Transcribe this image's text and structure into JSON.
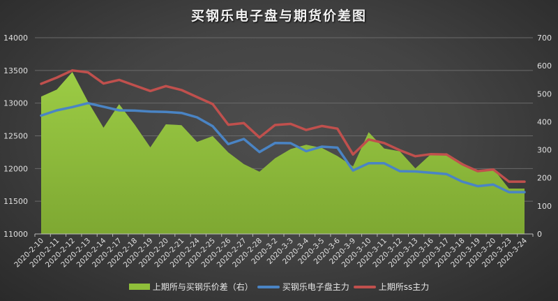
{
  "chart_data": {
    "type": "line",
    "title": "买钢乐电子盘与期货价差图",
    "xlabel": "",
    "ylabel": "",
    "ylim": [
      11000,
      14000
    ],
    "y2lim": [
      0,
      700
    ],
    "yticks": [
      11000,
      11500,
      12000,
      12500,
      13000,
      13500,
      14000
    ],
    "y2ticks": [
      0,
      100,
      200,
      300,
      400,
      500,
      600,
      700
    ],
    "grid": true,
    "legend_position": "bottom",
    "categories": [
      "2020-2-10",
      "2020-2-11",
      "2020-2-12",
      "2020-2-13",
      "2020-2-14",
      "2020-2-17",
      "2020-2-18",
      "2020-2-19",
      "2020-2-20",
      "2020-2-21",
      "2020-2-24",
      "2020-2-25",
      "2020-2-26",
      "2020-2-27",
      "2020-2-28",
      "2020-3-2",
      "2020-3-3",
      "2020-3-4",
      "2020-3-5",
      "2020-3-6",
      "2020-3-9",
      "2020-3-10",
      "2020-3-11",
      "2020-3-12",
      "2020-3-13",
      "2020-3-16",
      "2020-3-17",
      "2020-3-18",
      "2020-3-19",
      "2020-3-20",
      "2020-3-23",
      "2020-3-24"
    ],
    "series": [
      {
        "name": "上期所与买钢乐价差（右）",
        "type": "area",
        "axis": "right",
        "color": "#8fbf3a",
        "values": [
          490,
          515,
          578,
          472,
          379,
          463,
          390,
          309,
          391,
          388,
          328,
          349,
          291,
          249,
          222,
          270,
          303,
          318,
          307,
          278,
          241,
          363,
          305,
          295,
          234,
          285,
          288,
          254,
          224,
          233,
          162,
          162
        ]
      },
      {
        "name": "买钢乐电子盘主力",
        "type": "line",
        "axis": "left",
        "color": "#4a84c4",
        "values": [
          12810,
          12890,
          12940,
          13000,
          12945,
          12890,
          12885,
          12870,
          12865,
          12850,
          12783,
          12647,
          12373,
          12452,
          12252,
          12390,
          12388,
          12265,
          12335,
          12320,
          11970,
          12080,
          12080,
          11960,
          11955,
          11935,
          11915,
          11800,
          11730,
          11755,
          11640,
          11640
        ]
      },
      {
        "name": "上期所ss主力",
        "type": "line",
        "axis": "left",
        "color": "#c0504d",
        "values": [
          13295,
          13390,
          13500,
          13470,
          13300,
          13355,
          13270,
          13185,
          13260,
          13200,
          13093,
          12986,
          12670,
          12694,
          12475,
          12665,
          12683,
          12590,
          12650,
          12610,
          12215,
          12445,
          12390,
          12280,
          12188,
          12220,
          12215,
          12065,
          11960,
          11985,
          11800,
          11800
        ]
      }
    ]
  },
  "legend": {
    "items": [
      {
        "label": "上期所与买钢乐价差（右）",
        "color": "#8fbf3a"
      },
      {
        "label": "买钢乐电子盘主力",
        "color": "#4a84c4"
      },
      {
        "label": "上期所ss主力",
        "color": "#c0504d"
      }
    ]
  }
}
